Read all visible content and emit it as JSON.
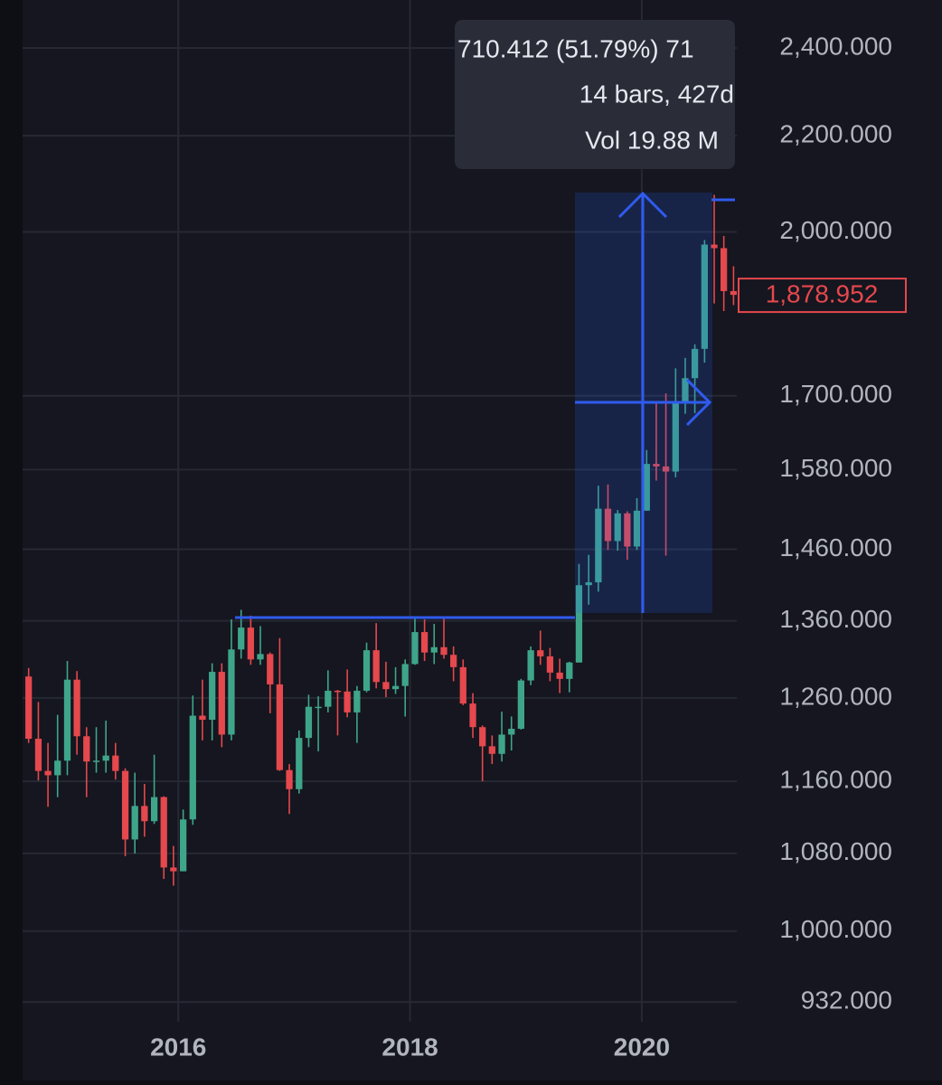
{
  "chart_data": {
    "type": "candlestick",
    "x": [
      2014.708,
      2014.792,
      2014.875,
      2014.958,
      2015.042,
      2015.125,
      2015.208,
      2015.292,
      2015.375,
      2015.458,
      2015.542,
      2015.625,
      2015.708,
      2015.792,
      2015.875,
      2015.958,
      2016.042,
      2016.125,
      2016.208,
      2016.292,
      2016.375,
      2016.458,
      2016.542,
      2016.625,
      2016.708,
      2016.792,
      2016.875,
      2016.958,
      2017.042,
      2017.125,
      2017.208,
      2017.292,
      2017.375,
      2017.458,
      2017.542,
      2017.625,
      2017.708,
      2017.792,
      2017.875,
      2017.958,
      2018.042,
      2018.125,
      2018.208,
      2018.292,
      2018.375,
      2018.458,
      2018.542,
      2018.625,
      2018.708,
      2018.792,
      2018.875,
      2018.958,
      2019.042,
      2019.125,
      2019.208,
      2019.292,
      2019.375,
      2019.458,
      2019.542,
      2019.625,
      2019.708,
      2019.792,
      2019.875,
      2019.958,
      2020.042,
      2020.125,
      2020.208,
      2020.292,
      2020.375,
      2020.458,
      2020.542,
      2020.625,
      2020.708,
      2020.792
    ],
    "open": [
      1287,
      1210,
      1172,
      1167,
      1184,
      1283,
      1213,
      1183,
      1184,
      1190,
      1172,
      1095,
      1132,
      1115,
      1142,
      1065,
      1061,
      1117,
      1238,
      1233,
      1293,
      1215,
      1322,
      1351,
      1309,
      1316,
      1277,
      1173,
      1151,
      1211,
      1249,
      1249,
      1269,
      1268,
      1242,
      1269,
      1321,
      1280,
      1271,
      1275,
      1303,
      1345,
      1318,
      1325,
      1315,
      1299,
      1253,
      1224,
      1201,
      1192,
      1215,
      1222,
      1282,
      1321,
      1313,
      1292,
      1284,
      1305,
      1409,
      1413,
      1520,
      1472,
      1513,
      1464,
      1517,
      1589,
      1585,
      1577,
      1687,
      1730,
      1781,
      1975,
      1968,
      1886
    ],
    "high": [
      1298,
      1255,
      1205,
      1239,
      1307,
      1294,
      1224,
      1224,
      1232,
      1205,
      1175,
      1170,
      1157,
      1191,
      1143,
      1088,
      1128,
      1263,
      1283,
      1304,
      1304,
      1362,
      1375,
      1367,
      1353,
      1318,
      1337,
      1180,
      1220,
      1264,
      1262,
      1295,
      1270,
      1296,
      1275,
      1331,
      1357,
      1306,
      1299,
      1309,
      1366,
      1362,
      1356,
      1365,
      1326,
      1309,
      1266,
      1226,
      1214,
      1243,
      1237,
      1284,
      1326,
      1347,
      1324,
      1310,
      1306,
      1439,
      1452,
      1555,
      1557,
      1518,
      1516,
      1536,
      1611,
      1689,
      1704,
      1747,
      1765,
      1789,
      1984,
      2075,
      1992,
      1933
    ],
    "low": [
      1205,
      1161,
      1131,
      1142,
      1167,
      1191,
      1142,
      1170,
      1170,
      1162,
      1077,
      1080,
      1098,
      1112,
      1053,
      1046,
      1061,
      1111,
      1208,
      1208,
      1200,
      1208,
      1310,
      1302,
      1302,
      1241,
      1172,
      1123,
      1146,
      1200,
      1195,
      1242,
      1214,
      1236,
      1205,
      1267,
      1272,
      1261,
      1265,
      1237,
      1302,
      1307,
      1303,
      1310,
      1281,
      1251,
      1211,
      1160,
      1180,
      1183,
      1196,
      1221,
      1276,
      1302,
      1281,
      1266,
      1267,
      1305,
      1382,
      1400,
      1459,
      1458,
      1445,
      1459,
      1517,
      1563,
      1451,
      1568,
      1670,
      1671,
      1757,
      1863,
      1849,
      1860
    ],
    "close": [
      1210,
      1172,
      1167,
      1184,
      1283,
      1213,
      1183,
      1184,
      1190,
      1172,
      1095,
      1132,
      1115,
      1142,
      1065,
      1061,
      1117,
      1238,
      1233,
      1293,
      1215,
      1322,
      1351,
      1309,
      1316,
      1277,
      1173,
      1151,
      1211,
      1249,
      1249,
      1269,
      1268,
      1242,
      1269,
      1321,
      1280,
      1271,
      1275,
      1303,
      1345,
      1318,
      1325,
      1315,
      1299,
      1253,
      1224,
      1201,
      1192,
      1215,
      1222,
      1282,
      1321,
      1313,
      1292,
      1284,
      1305,
      1409,
      1413,
      1520,
      1472,
      1513,
      1464,
      1517,
      1589,
      1585,
      1577,
      1687,
      1730,
      1781,
      1975,
      1968,
      1886,
      1878.952
    ],
    "up_color": "#3fa58a",
    "down_color": "#e5484d",
    "xlim": [
      2014.656,
      2020.82
    ],
    "xticks": [
      2016,
      2018,
      2020
    ],
    "ylim": [
      914,
      2517
    ],
    "log_scale": true,
    "yticks": [
      {
        "value": 932,
        "label": "932.000"
      },
      {
        "value": 1000,
        "label": "1,000.000"
      },
      {
        "value": 1080,
        "label": "1,080.000"
      },
      {
        "value": 1160,
        "label": "1,160.000"
      },
      {
        "value": 1260,
        "label": "1,260.000"
      },
      {
        "value": 1360,
        "label": "1,360.000"
      },
      {
        "value": 1460,
        "label": "1,460.000"
      },
      {
        "value": 1580,
        "label": "1,580.000"
      },
      {
        "value": 1700,
        "label": "1,700.000"
      },
      {
        "value": 2000,
        "label": "2,000.000"
      },
      {
        "value": 2200,
        "label": "2,200.000"
      },
      {
        "value": 2400,
        "label": "2,400.000"
      }
    ],
    "grid": true,
    "last_price": {
      "value": 1878.952,
      "label": "1,878.952"
    },
    "annotations": [
      "710.412 (51.79%) 71",
      "14 bars, 427d",
      "Vol 19.88 M"
    ]
  }
}
